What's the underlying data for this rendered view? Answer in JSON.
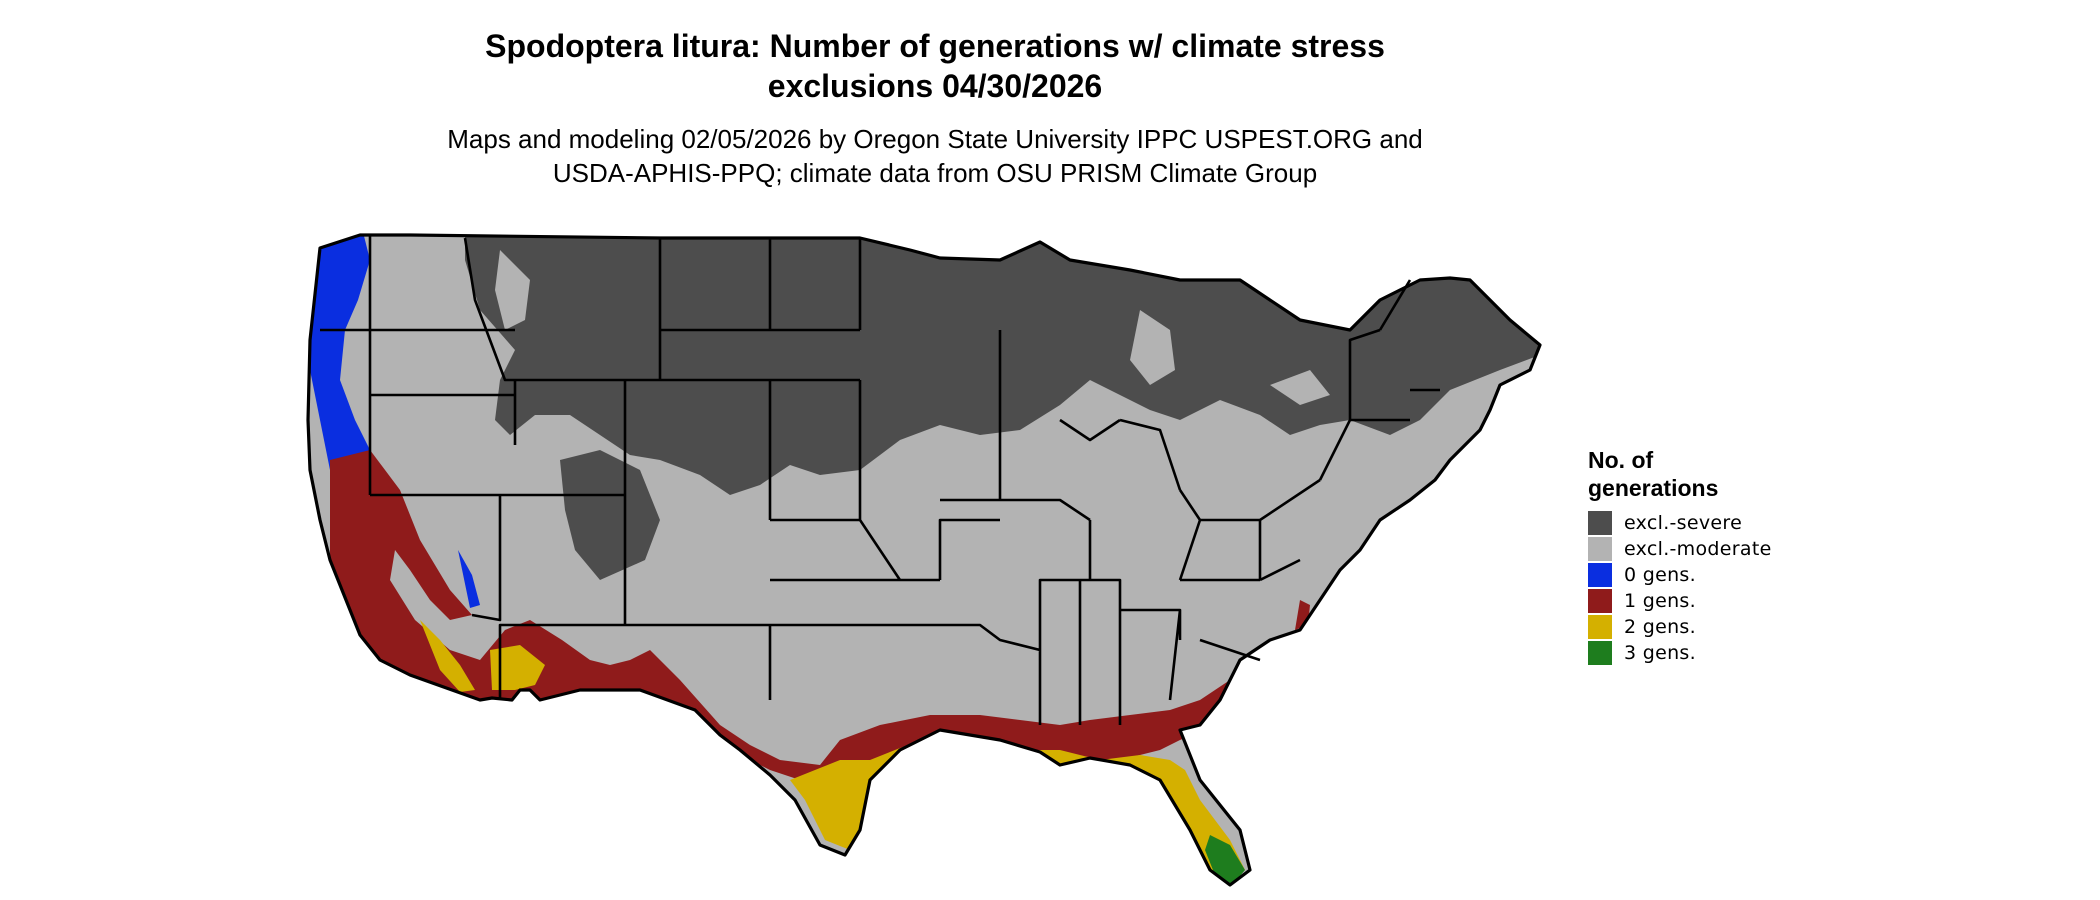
{
  "header": {
    "title_line1": "Spodoptera litura: Number of generations w/ climate stress",
    "title_line2": "exclusions 04/30/2026",
    "subtitle_line1": "Maps and modeling 02/05/2026 by Oregon State University IPPC USPEST.ORG and",
    "subtitle_line2": "USDA-APHIS-PPQ; climate data from OSU PRISM Climate Group"
  },
  "legend": {
    "title_line1": "No. of",
    "title_line2": "generations",
    "items": [
      {
        "label": "excl.-severe",
        "color": "#4d4d4d"
      },
      {
        "label": "excl.-moderate",
        "color": "#b3b3b3"
      },
      {
        "label": "0 gens.",
        "color": "#0a2ee0"
      },
      {
        "label": "1 gens.",
        "color": "#8f1b1b"
      },
      {
        "label": "2 gens.",
        "color": "#d4b000"
      },
      {
        "label": "3 gens.",
        "color": "#1e7d1e"
      }
    ]
  },
  "map": {
    "region": "conterminous-united-states",
    "boundaries": "state-lines",
    "border_color": "#000000"
  }
}
